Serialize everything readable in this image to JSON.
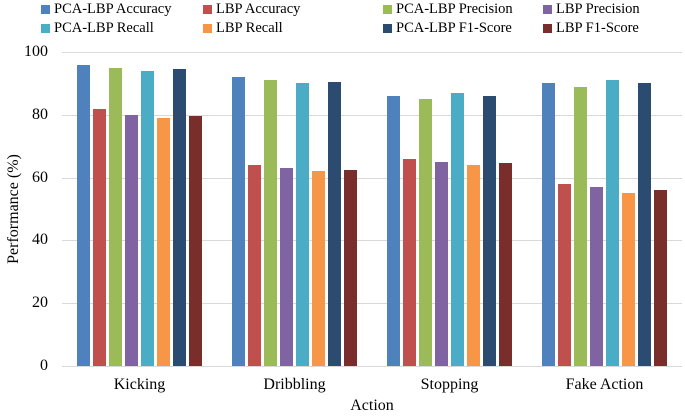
{
  "chart_data": {
    "type": "bar",
    "title": "",
    "xlabel": "Action",
    "ylabel": "Performance (%)",
    "ylim": [
      0,
      100
    ],
    "yticks": [
      0,
      20,
      40,
      60,
      80,
      100
    ],
    "grid": true,
    "legend_position": "top",
    "categories": [
      "Kicking",
      "Dribbling",
      "Stopping",
      "Fake Action"
    ],
    "series": [
      {
        "name": "PCA-LBP Accuracy",
        "color": "#4F81BD",
        "values": [
          96,
          92,
          86,
          90
        ]
      },
      {
        "name": "LBP Accuracy",
        "color": "#C0504D",
        "values": [
          82,
          64,
          66,
          58
        ]
      },
      {
        "name": "PCA-LBP Precision",
        "color": "#9BBB59",
        "values": [
          95,
          91,
          85,
          89
        ]
      },
      {
        "name": "LBP Precision",
        "color": "#8064A2",
        "values": [
          80,
          63,
          65,
          57
        ]
      },
      {
        "name": "PCA-LBP Recall",
        "color": "#4BACC6",
        "values": [
          94,
          90,
          87,
          91
        ]
      },
      {
        "name": "LBP Recall",
        "color": "#F79646",
        "values": [
          79,
          62,
          64,
          55
        ]
      },
      {
        "name": "PCA-LBP F1-Score",
        "color": "#2B4B71",
        "values": [
          94.5,
          90.5,
          86,
          90
        ]
      },
      {
        "name": "LBP F1-Score",
        "color": "#7A2E2B",
        "values": [
          79.5,
          62.5,
          64.5,
          56
        ]
      }
    ]
  }
}
